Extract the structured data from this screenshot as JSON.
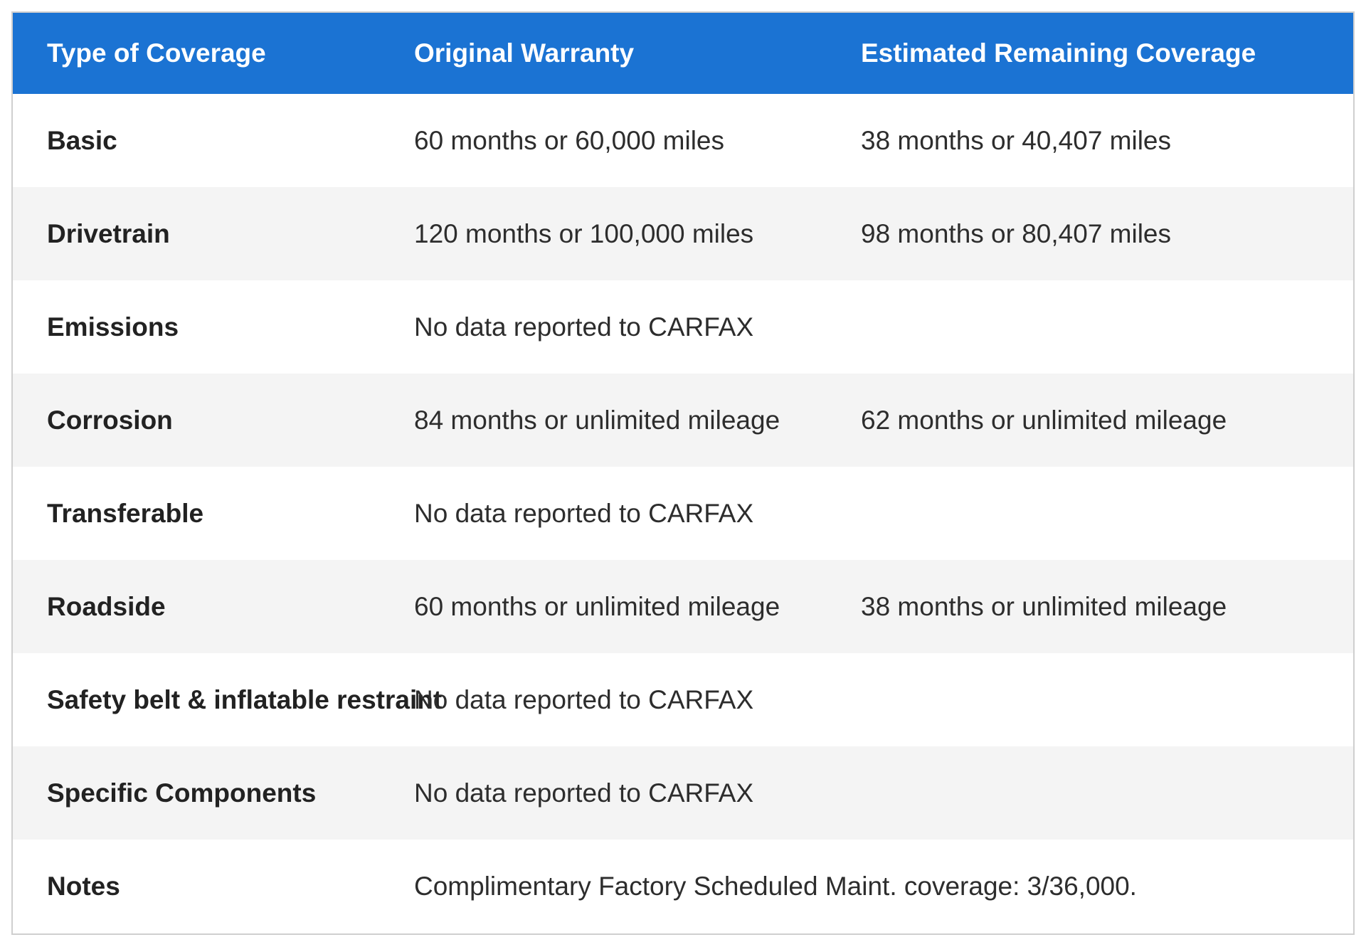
{
  "header": {
    "col_type": "Type of Coverage",
    "col_original": "Original Warranty",
    "col_remaining": "Estimated Remaining Coverage"
  },
  "rows": [
    {
      "type": "Basic",
      "original": "60 months or 60,000 miles",
      "remaining": "38 months or 40,407 miles"
    },
    {
      "type": "Drivetrain",
      "original": "120 months or 100,000 miles",
      "remaining": "98 months or 80,407 miles"
    },
    {
      "type": "Emissions",
      "original": "No data reported to CARFAX",
      "remaining": ""
    },
    {
      "type": "Corrosion",
      "original": "84 months or unlimited mileage",
      "remaining": "62 months or unlimited mileage"
    },
    {
      "type": "Transferable",
      "original": "No data reported to CARFAX",
      "remaining": ""
    },
    {
      "type": "Roadside",
      "original": "60 months or unlimited mileage",
      "remaining": "38 months or unlimited mileage"
    },
    {
      "type": "Safety belt & inflatable restraint",
      "original": "No data reported to CARFAX",
      "remaining": ""
    },
    {
      "type": "Specific Components",
      "original": "No data reported to CARFAX",
      "remaining": ""
    },
    {
      "type": "Notes",
      "original": "Complimentary Factory Scheduled Maint. coverage: 3/36,000.",
      "remaining": ""
    }
  ],
  "colors": {
    "header_bg": "#1b73d3",
    "header_text": "#ffffff",
    "alt_row_bg": "#f4f4f4"
  }
}
